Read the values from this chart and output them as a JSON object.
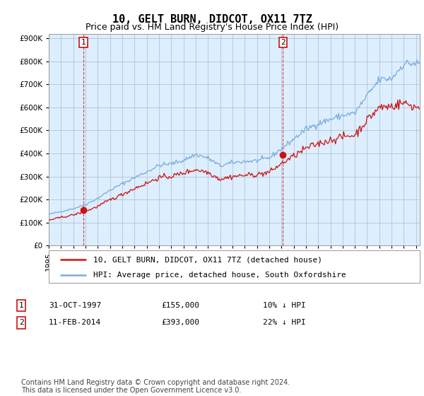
{
  "title": "10, GELT BURN, DIDCOT, OX11 7TZ",
  "subtitle": "Price paid vs. HM Land Registry's House Price Index (HPI)",
  "ytick_values": [
    0,
    100000,
    200000,
    300000,
    400000,
    500000,
    600000,
    700000,
    800000,
    900000
  ],
  "ylim": [
    0,
    920000
  ],
  "xlim_start": 1995.0,
  "xlim_end": 2025.3,
  "sale1_date": 1997.83,
  "sale1_price": 155000,
  "sale1_label": "1",
  "sale2_date": 2014.12,
  "sale2_price": 393000,
  "sale2_label": "2",
  "hpi_color": "#7aabdb",
  "price_color": "#cc1111",
  "marker_color": "#cc1111",
  "vline_color": "#cc1111",
  "plot_bg_color": "#ddeeff",
  "background_color": "#ffffff",
  "grid_color": "#aabbcc",
  "legend_label_price": "10, GELT BURN, DIDCOT, OX11 7TZ (detached house)",
  "legend_label_hpi": "HPI: Average price, detached house, South Oxfordshire",
  "annotation1_date": "31-OCT-1997",
  "annotation1_price": "£155,000",
  "annotation1_hpi": "10% ↓ HPI",
  "annotation2_date": "11-FEB-2014",
  "annotation2_price": "£393,000",
  "annotation2_hpi": "22% ↓ HPI",
  "footer": "Contains HM Land Registry data © Crown copyright and database right 2024.\nThis data is licensed under the Open Government Licence v3.0.",
  "title_fontsize": 11,
  "subtitle_fontsize": 9,
  "tick_fontsize": 7.5,
  "legend_fontsize": 8,
  "annot_fontsize": 8,
  "footer_fontsize": 7
}
